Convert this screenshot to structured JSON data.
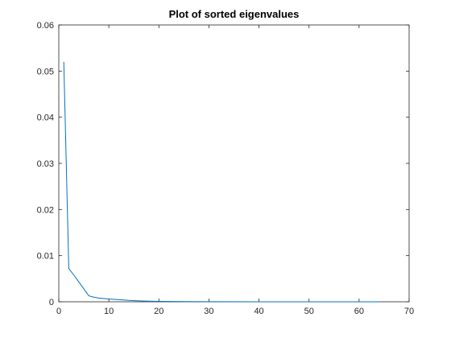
{
  "chart_data": {
    "type": "line",
    "title": "Plot of sorted eigenvalues",
    "xlabel": "",
    "ylabel": "",
    "xlim": [
      0,
      70
    ],
    "ylim": [
      0,
      0.06
    ],
    "xticks": [
      0,
      10,
      20,
      30,
      40,
      50,
      60,
      70
    ],
    "xtick_labels": [
      "0",
      "10",
      "20",
      "30",
      "40",
      "50",
      "60",
      "70"
    ],
    "yticks": [
      0,
      0.01,
      0.02,
      0.03,
      0.04,
      0.05,
      0.06
    ],
    "ytick_labels": [
      "0",
      "0.01",
      "0.02",
      "0.03",
      "0.04",
      "0.05",
      "0.06"
    ],
    "grid": false,
    "series": [
      {
        "color": "#0072BD",
        "x": [
          1,
          2,
          3,
          4,
          5,
          6,
          7,
          8,
          9,
          10,
          12,
          14,
          16,
          18,
          20,
          25,
          30,
          40,
          50,
          60,
          64
        ],
        "y": [
          0.052,
          0.0072,
          0.0058,
          0.0043,
          0.0028,
          0.0013,
          0.001,
          0.0008,
          0.0007,
          0.0006,
          0.00045,
          0.0003,
          0.0002,
          0.00012,
          8e-05,
          4e-05,
          2e-05,
          1e-05,
          5e-06,
          2e-06,
          1e-06
        ]
      }
    ]
  }
}
